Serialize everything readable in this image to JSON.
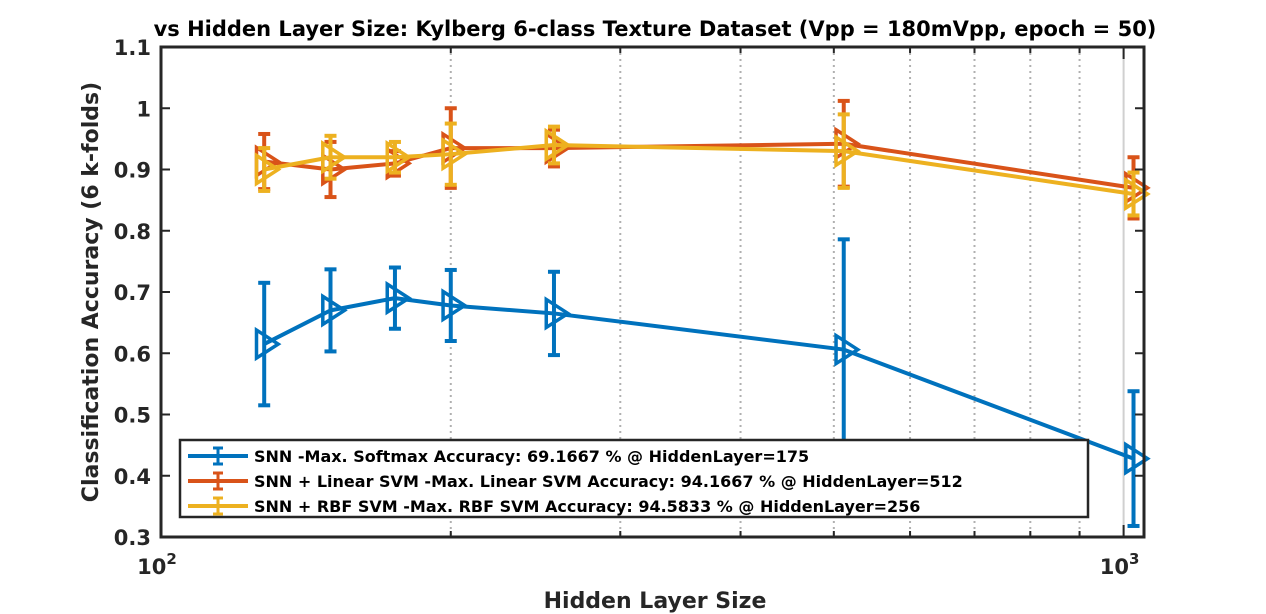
{
  "chart_data": {
    "type": "line",
    "title": "vs Hidden Layer Size: Kylberg 6-class Texture Dataset (Vpp = 180mVpp,  epoch = 50)",
    "xlabel": "Hidden Layer Size",
    "ylabel": "Classification Accuracy (6 k-folds)",
    "xscale": "log",
    "xlim": [
      100,
      1050
    ],
    "ylim": [
      0.3,
      1.1
    ],
    "yticks": [
      0.3,
      0.4,
      0.5,
      0.6,
      0.7,
      0.8,
      0.9,
      1,
      1.1
    ],
    "ytick_labels": [
      "0.3",
      "0.4",
      "0.5",
      "0.6",
      "0.7",
      "0.8",
      "0.9",
      "1",
      "1.1"
    ],
    "xticks": [
      100,
      1000
    ],
    "xtick_labels": [
      {
        "base": "10",
        "exp": "2"
      },
      {
        "base": "10",
        "exp": "3"
      }
    ],
    "grid": "x-minor",
    "legend_position": "bottom-left",
    "series": [
      {
        "name": "SNN -Max. Softmax Accuracy: 69.1667 % @ HiddenLayer=175",
        "color": "#0072BD",
        "x": [
          128,
          150,
          175,
          200,
          256,
          512,
          1024
        ],
        "y": [
          0.615,
          0.67,
          0.69,
          0.678,
          0.665,
          0.606,
          0.428
        ],
        "err": [
          0.1,
          0.067,
          0.05,
          0.058,
          0.068,
          0.18,
          0.11
        ]
      },
      {
        "name": "SNN + Linear SVM -Max. Linear SVM Accuracy: 94.1667 % @ HiddenLayer=512",
        "color": "#D95319",
        "x": [
          128,
          150,
          175,
          200,
          256,
          512,
          1024
        ],
        "y": [
          0.913,
          0.9,
          0.91,
          0.935,
          0.935,
          0.942,
          0.87
        ],
        "err": [
          0.045,
          0.045,
          0.02,
          0.065,
          0.03,
          0.07,
          0.05
        ]
      },
      {
        "name": "SNN + RBF SVM -Max. RBF SVM Accuracy: 94.5833 % @ HiddenLayer=256",
        "color": "#EDB120",
        "x": [
          128,
          150,
          175,
          200,
          256,
          512,
          1024
        ],
        "y": [
          0.9,
          0.92,
          0.92,
          0.925,
          0.94,
          0.93,
          0.86
        ],
        "err": [
          0.035,
          0.035,
          0.025,
          0.05,
          0.03,
          0.06,
          0.035
        ]
      }
    ]
  }
}
